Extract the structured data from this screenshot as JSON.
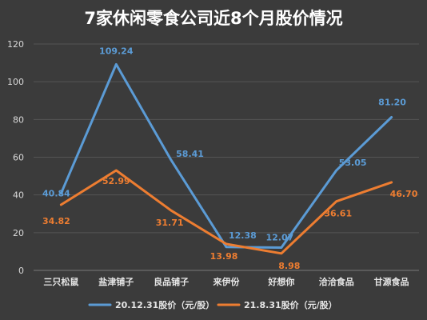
{
  "chart_data": {
    "type": "line",
    "title": "7家休闲零食公司近8个月股价情况",
    "categories": [
      "三只松鼠",
      "盐津铺子",
      "良品铺子",
      "来伊份",
      "好想你",
      "洽洽食品",
      "甘源食品"
    ],
    "series": [
      {
        "name": "20.12.31股价（元/股）",
        "color": "#5b9bd5",
        "values": [
          40.84,
          109.24,
          58.41,
          12.38,
          12.07,
          53.05,
          81.2
        ],
        "labels": [
          "40.84",
          "109.24",
          "58.41",
          "12.38",
          "12.07",
          "53.05",
          "81.20"
        ]
      },
      {
        "name": "21.8.31股价（元/股）",
        "color": "#ed7d31",
        "values": [
          34.82,
          52.99,
          31.71,
          13.98,
          8.98,
          36.61,
          46.7
        ],
        "labels": [
          "34.82",
          "52.99",
          "31.71",
          "13.98",
          "8.98",
          "36.61",
          "46.70"
        ]
      }
    ],
    "yticks": [
      "0",
      "20",
      "40",
      "60",
      "80",
      "100",
      "120"
    ],
    "ylim": [
      0,
      120
    ],
    "grid": true,
    "legend": "bottom"
  }
}
